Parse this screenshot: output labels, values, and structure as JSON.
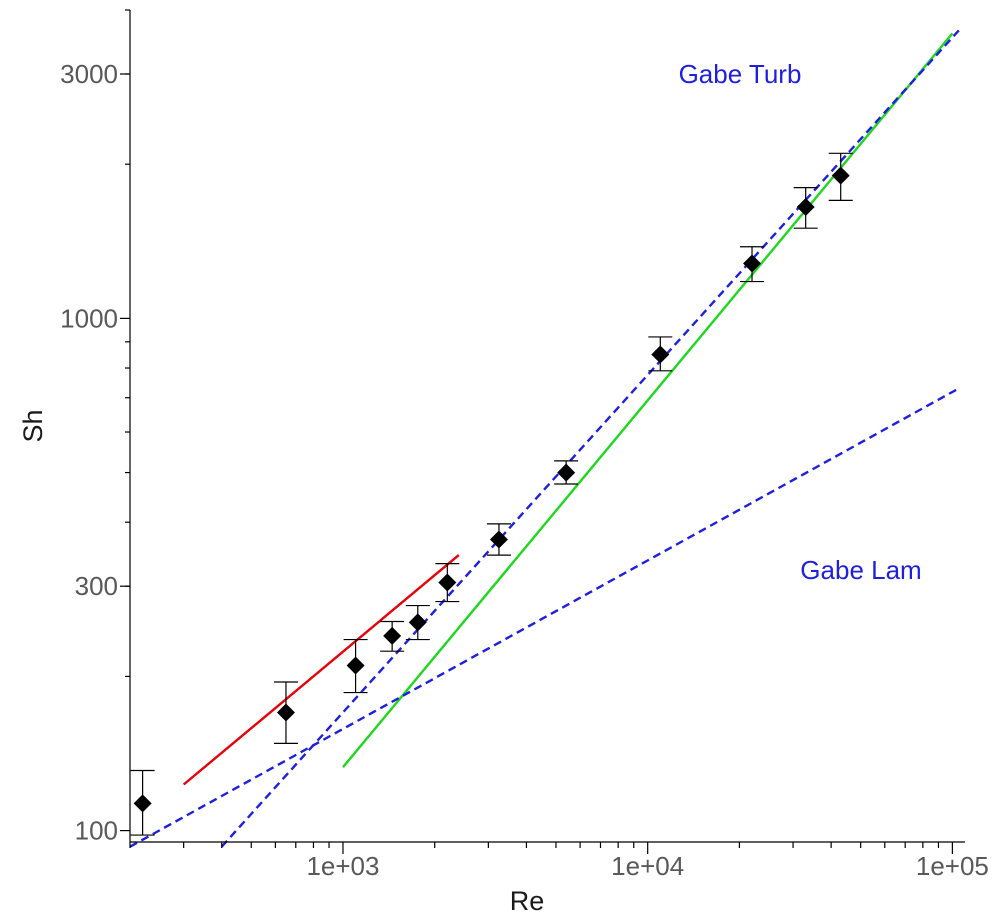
{
  "chart_data": {
    "type": "scatter",
    "xlabel": "Re",
    "ylabel": "Sh",
    "x_scale": "log",
    "y_scale": "log",
    "xlim": [
      200,
      110000
    ],
    "ylim": [
      95,
      4000
    ],
    "x_major_ticks": [
      {
        "value": 1000,
        "label": "1e+03"
      },
      {
        "value": 10000,
        "label": "1e+04"
      },
      {
        "value": 100000,
        "label": "1e+05"
      }
    ],
    "y_major_ticks": [
      {
        "value": 100,
        "label": "100"
      },
      {
        "value": 300,
        "label": "300"
      },
      {
        "value": 1000,
        "label": "1000"
      },
      {
        "value": 3000,
        "label": "3000"
      }
    ],
    "grid": false,
    "points": [
      {
        "x": 220,
        "y": 113,
        "y_low": 98,
        "y_high": 131
      },
      {
        "x": 650,
        "y": 170,
        "y_low": 148,
        "y_high": 195
      },
      {
        "x": 1100,
        "y": 210,
        "y_low": 186,
        "y_high": 236
      },
      {
        "x": 1450,
        "y": 240,
        "y_low": 224,
        "y_high": 256
      },
      {
        "x": 1760,
        "y": 255,
        "y_low": 236,
        "y_high": 275
      },
      {
        "x": 2200,
        "y": 305,
        "y_low": 280,
        "y_high": 332
      },
      {
        "x": 3250,
        "y": 370,
        "y_low": 345,
        "y_high": 397
      },
      {
        "x": 5400,
        "y": 500,
        "y_low": 475,
        "y_high": 527
      },
      {
        "x": 11000,
        "y": 850,
        "y_low": 790,
        "y_high": 920
      },
      {
        "x": 22000,
        "y": 1280,
        "y_low": 1180,
        "y_high": 1380
      },
      {
        "x": 33000,
        "y": 1650,
        "y_low": 1500,
        "y_high": 1800
      },
      {
        "x": 43000,
        "y": 1900,
        "y_low": 1700,
        "y_high": 2100
      }
    ],
    "series": [
      {
        "color": "#e8000b",
        "style": "solid",
        "x": [
          300,
          2400
        ],
        "y": [
          123,
          345
        ]
      },
      {
        "color": "#1ed81e",
        "style": "solid",
        "x": [
          1000,
          100000
        ],
        "y": [
          133,
          3600
        ]
      },
      {
        "color": "#1f1fe0",
        "style": "dashed",
        "x": [
          200,
          105000
        ],
        "y": [
          93,
          730
        ]
      },
      {
        "color": "#1f1fe0",
        "style": "dashed",
        "x": [
          400,
          105000
        ],
        "y": [
          93,
          3650
        ]
      }
    ],
    "annotations": [
      {
        "text": "Gabe Turb",
        "color": "#1f1fe0"
      },
      {
        "text": "Gabe Lam",
        "color": "#1f1fe0"
      }
    ]
  }
}
